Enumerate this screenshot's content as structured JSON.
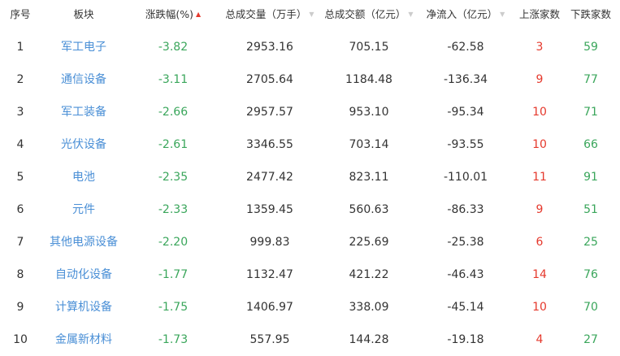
{
  "header": [
    "序号",
    "板块",
    "涨跌幅(%)",
    "总成交量（万手）",
    "总成交额（亿元）",
    "净流入（亿元）",
    "上涨家数",
    "下跌家数"
  ],
  "sort_icons": {
    "change": "sort-up-icon",
    "volume": "sort-icon",
    "amount": "sort-icon",
    "inflow": "sort-icon"
  },
  "colors": {
    "sector": "#4a8fd6",
    "down": "#3aa65b",
    "up": "#e5392d"
  },
  "rows": [
    [
      "1",
      "军工电子",
      "-3.82",
      "2953.16",
      "705.15",
      "-62.58",
      "3",
      "59"
    ],
    [
      "2",
      "通信设备",
      "-3.11",
      "2705.64",
      "1184.48",
      "-136.34",
      "9",
      "77"
    ],
    [
      "3",
      "军工装备",
      "-2.66",
      "2957.57",
      "953.10",
      "-95.34",
      "10",
      "71"
    ],
    [
      "4",
      "光伏设备",
      "-2.61",
      "3346.55",
      "703.14",
      "-93.55",
      "10",
      "66"
    ],
    [
      "5",
      "电池",
      "-2.35",
      "2477.42",
      "823.11",
      "-110.01",
      "11",
      "91"
    ],
    [
      "6",
      "元件",
      "-2.33",
      "1359.45",
      "560.63",
      "-86.33",
      "9",
      "51"
    ],
    [
      "7",
      "其他电源设备",
      "-2.20",
      "999.83",
      "225.69",
      "-25.38",
      "6",
      "25"
    ],
    [
      "8",
      "自动化设备",
      "-1.77",
      "1132.47",
      "421.22",
      "-46.43",
      "14",
      "76"
    ],
    [
      "9",
      "计算机设备",
      "-1.75",
      "1406.97",
      "338.09",
      "-45.14",
      "10",
      "70"
    ],
    [
      "10",
      "金属新材料",
      "-1.73",
      "557.95",
      "144.28",
      "-19.18",
      "4",
      "27"
    ]
  ]
}
